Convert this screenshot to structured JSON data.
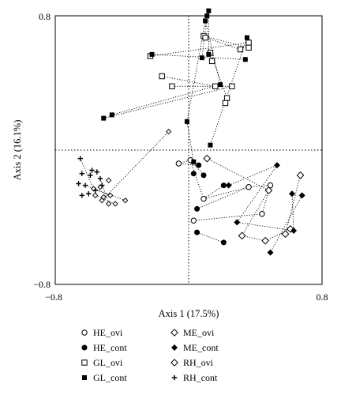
{
  "chart_data": {
    "type": "scatter",
    "xlabel": "Axis 1 (17.5%)",
    "ylabel": "Axis 2 (16.1%)",
    "xlim": [
      -0.8,
      0.8
    ],
    "ylim": [
      -0.8,
      0.8
    ],
    "x_ticks": [
      "−0.8",
      "0.8"
    ],
    "y_ticks": [
      "0.8",
      "−0.8"
    ],
    "grid": false,
    "reference_lines": "dotted lines at x = 0 and y = 0",
    "legend_position": "bottom",
    "series": [
      {
        "name": "HE_ovi",
        "marker": "circle-open",
        "points": [
          [
            -0.06,
            -0.08
          ],
          [
            0.01,
            -0.06
          ],
          [
            0.09,
            -0.29
          ],
          [
            0.36,
            -0.22
          ],
          [
            0.03,
            -0.42
          ],
          [
            0.49,
            -0.21
          ],
          [
            0.44,
            -0.38
          ]
        ],
        "links": [
          [
            [
              -0.06,
              -0.08
            ],
            [
              0.01,
              -0.06
            ]
          ],
          [
            [
              0.01,
              -0.06
            ],
            [
              0.09,
              -0.29
            ]
          ],
          [
            [
              0.09,
              -0.29
            ],
            [
              0.36,
              -0.22
            ]
          ],
          [
            [
              0.36,
              -0.22
            ],
            [
              0.49,
              -0.21
            ]
          ],
          [
            [
              0.03,
              -0.42
            ],
            [
              0.44,
              -0.38
            ]
          ],
          [
            [
              0.49,
              -0.21
            ],
            [
              0.44,
              -0.38
            ]
          ]
        ]
      },
      {
        "name": "HE_cont",
        "marker": "circle-filled",
        "points": [
          [
            0.06,
            -0.09
          ],
          [
            0.09,
            -0.15
          ],
          [
            0.03,
            -0.14
          ],
          [
            0.05,
            -0.35
          ],
          [
            0.21,
            -0.21
          ],
          [
            0.21,
            -0.55
          ],
          [
            0.05,
            -0.49
          ]
        ],
        "links": [
          [
            [
              0.06,
              -0.09
            ],
            [
              -0.06,
              -0.08
            ]
          ],
          [
            [
              0.09,
              -0.15
            ],
            [
              0.01,
              -0.06
            ]
          ],
          [
            [
              0.05,
              -0.35
            ],
            [
              0.36,
              -0.22
            ]
          ],
          [
            [
              0.05,
              -0.49
            ],
            [
              0.21,
              -0.55
            ]
          ],
          [
            [
              0.21,
              -0.21
            ],
            [
              0.09,
              -0.29
            ]
          ]
        ]
      },
      {
        "name": "GL_ovi",
        "marker": "square-open",
        "points": [
          [
            -0.23,
            0.56
          ],
          [
            0.09,
            0.68
          ],
          [
            0.1,
            0.67
          ],
          [
            0.36,
            0.64
          ],
          [
            0.36,
            0.61
          ],
          [
            0.13,
            0.58
          ],
          [
            0.14,
            0.53
          ],
          [
            0.31,
            0.6
          ],
          [
            -0.16,
            0.44
          ],
          [
            -0.1,
            0.38
          ],
          [
            0.16,
            0.38
          ],
          [
            0.26,
            0.38
          ],
          [
            0.23,
            0.31
          ],
          [
            0.22,
            0.28
          ]
        ],
        "links": [
          [
            [
              -0.23,
              0.56
            ],
            [
              0.36,
              0.64
            ]
          ],
          [
            [
              0.09,
              0.68
            ],
            [
              0.36,
              0.61
            ]
          ],
          [
            [
              0.1,
              0.67
            ],
            [
              0.31,
              0.6
            ]
          ],
          [
            [
              -0.16,
              0.44
            ],
            [
              0.16,
              0.38
            ]
          ],
          [
            [
              -0.1,
              0.38
            ],
            [
              0.26,
              0.38
            ]
          ],
          [
            [
              0.13,
              0.58
            ],
            [
              0.23,
              0.31
            ]
          ]
        ]
      },
      {
        "name": "GL_cont",
        "marker": "square-filled",
        "points": [
          [
            0.12,
            0.83
          ],
          [
            0.11,
            0.8
          ],
          [
            0.1,
            0.77
          ],
          [
            -0.22,
            0.57
          ],
          [
            0.35,
            0.67
          ],
          [
            0.12,
            0.57
          ],
          [
            0.08,
            0.55
          ],
          [
            0.34,
            0.54
          ],
          [
            0.19,
            0.39
          ],
          [
            -0.46,
            0.21
          ],
          [
            -0.51,
            0.19
          ],
          [
            -0.01,
            0.17
          ],
          [
            0.13,
            0.03
          ],
          [
            0.03,
            -0.07
          ]
        ],
        "links": [
          [
            [
              0.12,
              0.83
            ],
            [
              0.12,
              0.57
            ]
          ],
          [
            [
              0.11,
              0.8
            ],
            [
              0.08,
              0.55
            ]
          ],
          [
            [
              0.1,
              0.77
            ],
            [
              0.19,
              0.39
            ]
          ],
          [
            [
              -0.46,
              0.21
            ],
            [
              0.19,
              0.39
            ]
          ],
          [
            [
              -0.51,
              0.19
            ],
            [
              0.26,
              0.38
            ]
          ],
          [
            [
              -0.22,
              0.57
            ],
            [
              0.34,
              0.54
            ]
          ],
          [
            [
              0.35,
              0.67
            ],
            [
              0.13,
              0.03
            ]
          ],
          [
            [
              0.1,
              0.77
            ],
            [
              -0.01,
              0.17
            ]
          ],
          [
            [
              -0.01,
              0.17
            ],
            [
              0.03,
              -0.07
            ]
          ]
        ]
      },
      {
        "name": "ME_ovi",
        "marker": "diamond-open",
        "points": [
          [
            0.11,
            -0.05
          ],
          [
            0.48,
            -0.24
          ],
          [
            0.67,
            -0.15
          ],
          [
            0.32,
            -0.51
          ],
          [
            0.46,
            -0.54
          ],
          [
            0.58,
            -0.5
          ],
          [
            0.61,
            -0.47
          ]
        ],
        "links": [
          [
            [
              0.11,
              -0.05
            ],
            [
              0.48,
              -0.24
            ]
          ],
          [
            [
              0.48,
              -0.24
            ],
            [
              0.32,
              -0.51
            ]
          ],
          [
            [
              0.67,
              -0.15
            ],
            [
              0.58,
              -0.5
            ]
          ],
          [
            [
              0.46,
              -0.54
            ],
            [
              0.61,
              -0.47
            ]
          ],
          [
            [
              0.32,
              -0.51
            ],
            [
              0.46,
              -0.54
            ]
          ]
        ]
      },
      {
        "name": "ME_cont",
        "marker": "diamond-filled",
        "points": [
          [
            0.24,
            -0.21
          ],
          [
            0.53,
            -0.09
          ],
          [
            0.62,
            -0.26
          ],
          [
            0.68,
            -0.27
          ],
          [
            0.29,
            -0.43
          ],
          [
            0.63,
            -0.48
          ],
          [
            0.49,
            -0.61
          ]
        ],
        "links": [
          [
            [
              0.24,
              -0.21
            ],
            [
              0.53,
              -0.09
            ]
          ],
          [
            [
              0.53,
              -0.09
            ],
            [
              0.29,
              -0.43
            ]
          ],
          [
            [
              0.62,
              -0.26
            ],
            [
              0.63,
              -0.48
            ]
          ],
          [
            [
              0.68,
              -0.27
            ],
            [
              0.49,
              -0.61
            ]
          ],
          [
            [
              0.29,
              -0.43
            ],
            [
              0.63,
              -0.48
            ]
          ]
        ]
      },
      {
        "name": "RH_ovi",
        "marker": "diamond-open-small",
        "points": [
          [
            -0.57,
            -0.23
          ],
          [
            -0.53,
            -0.22
          ],
          [
            -0.56,
            -0.27
          ],
          [
            -0.51,
            -0.28
          ],
          [
            -0.52,
            -0.3
          ],
          [
            -0.47,
            -0.27
          ],
          [
            -0.48,
            -0.32
          ],
          [
            -0.44,
            -0.32
          ],
          [
            -0.38,
            -0.3
          ],
          [
            -0.48,
            -0.18
          ],
          [
            -0.12,
            0.11
          ]
        ],
        "links": [
          [
            [
              -0.57,
              -0.23
            ],
            [
              -0.38,
              -0.3
            ]
          ],
          [
            [
              -0.56,
              -0.27
            ],
            [
              -0.44,
              -0.32
            ]
          ],
          [
            [
              -0.52,
              -0.3
            ],
            [
              -0.12,
              0.11
            ]
          ]
        ]
      },
      {
        "name": "RH_cont",
        "marker": "plus",
        "points": [
          [
            -0.65,
            -0.05
          ],
          [
            -0.64,
            -0.14
          ],
          [
            -0.59,
            -0.15
          ],
          [
            -0.66,
            -0.2
          ],
          [
            -0.62,
            -0.21
          ],
          [
            -0.6,
            -0.26
          ],
          [
            -0.64,
            -0.27
          ],
          [
            -0.56,
            -0.24
          ],
          [
            -0.53,
            -0.17
          ],
          [
            -0.52,
            -0.21
          ],
          [
            -0.55,
            -0.13
          ],
          [
            -0.58,
            -0.12
          ]
        ],
        "links": [
          [
            [
              -0.65,
              -0.05
            ],
            [
              -0.57,
              -0.23
            ]
          ],
          [
            [
              -0.62,
              -0.21
            ],
            [
              -0.47,
              -0.27
            ]
          ],
          [
            [
              -0.53,
              -0.17
            ],
            [
              -0.48,
              -0.32
            ]
          ]
        ]
      }
    ]
  }
}
